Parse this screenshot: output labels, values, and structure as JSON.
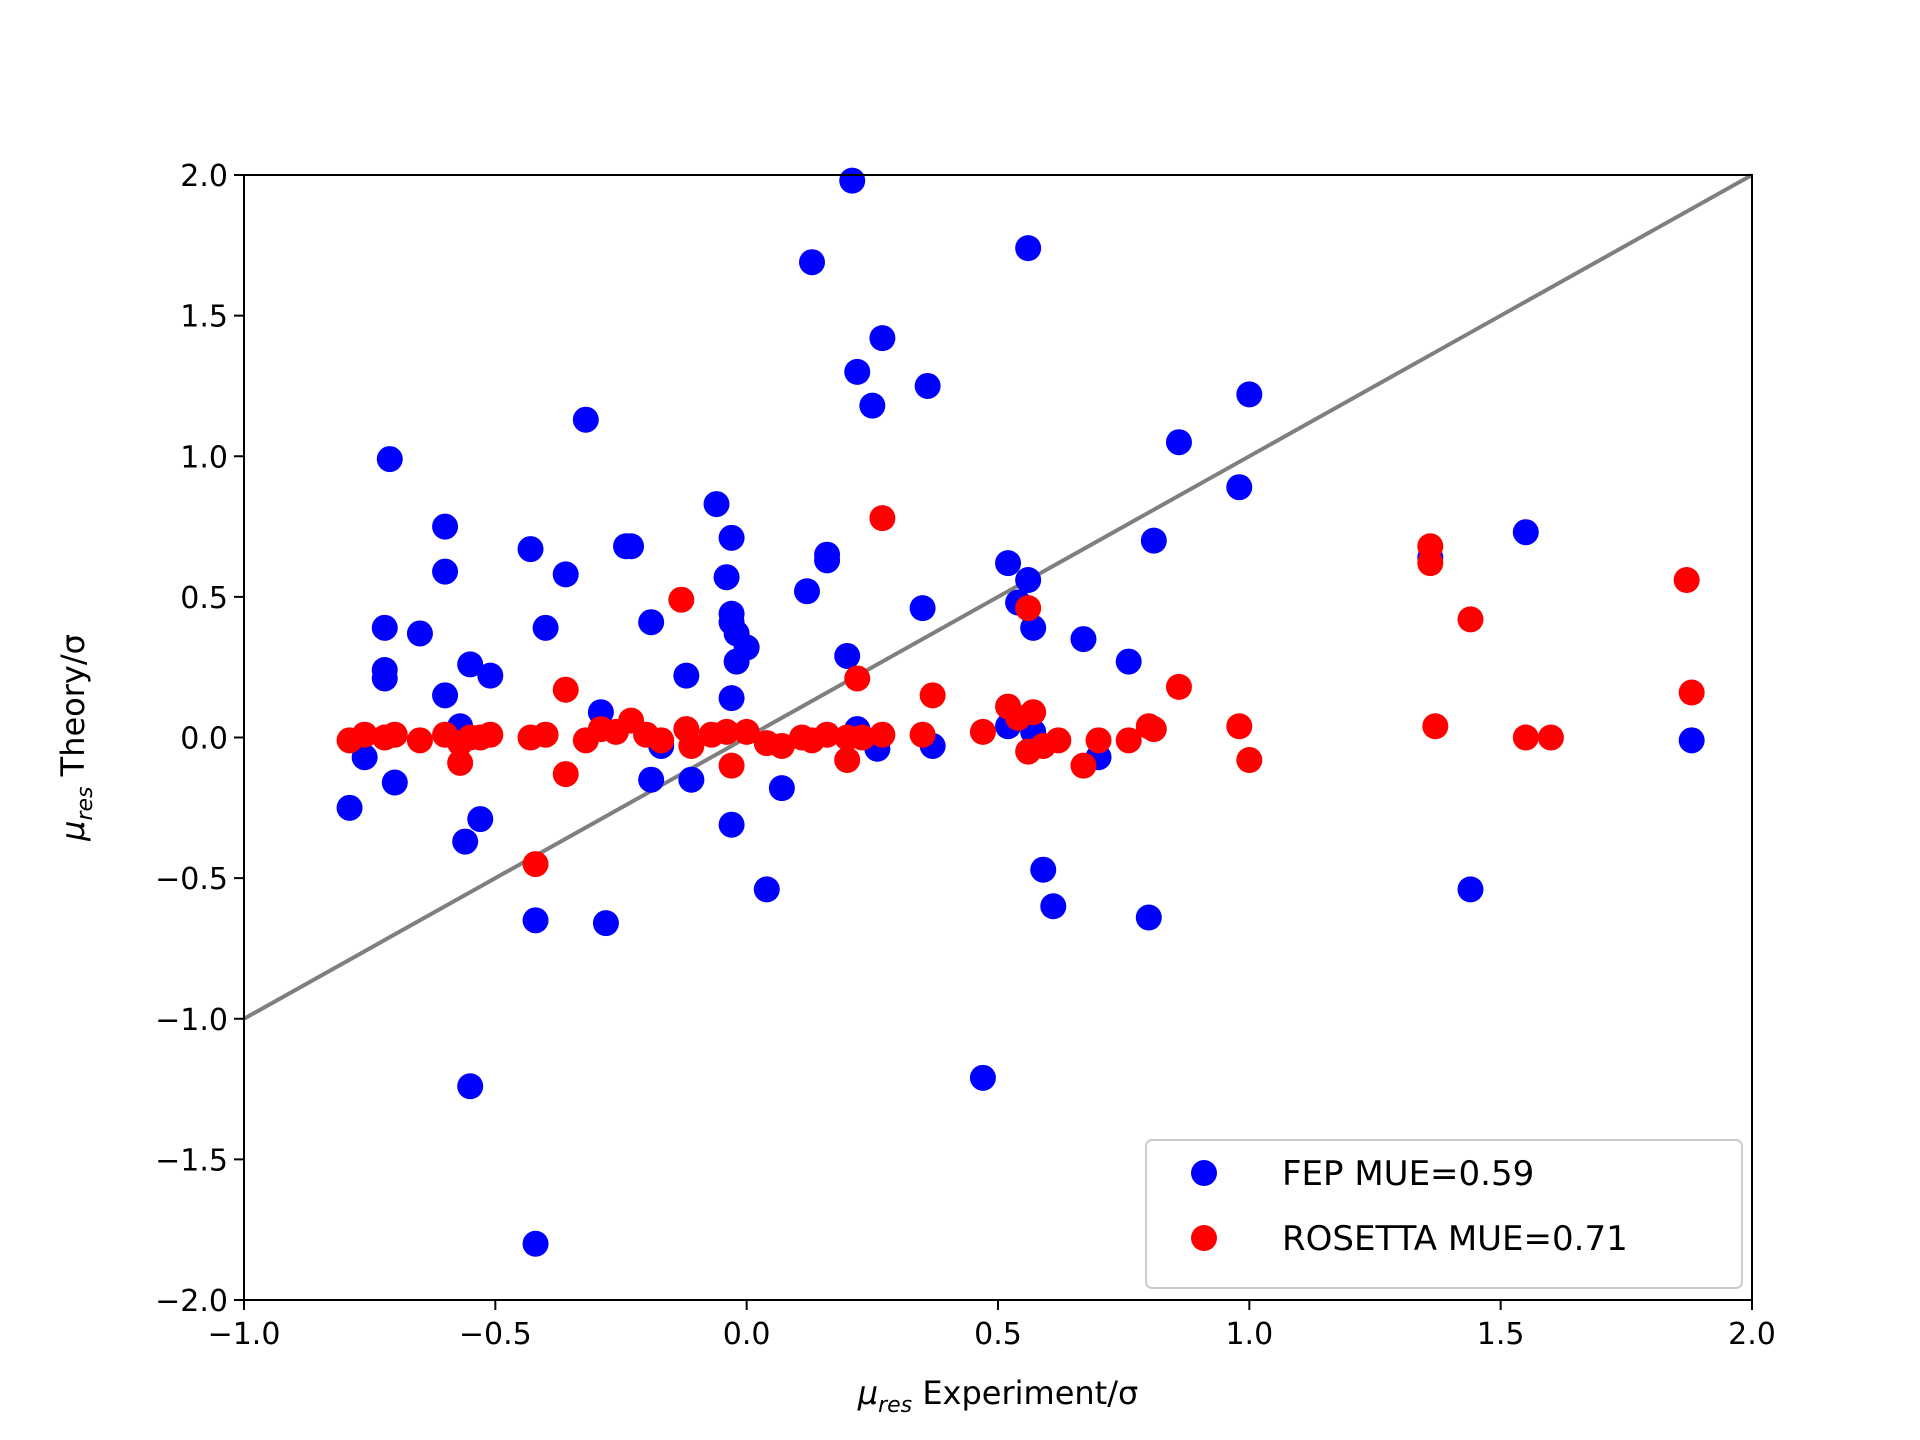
{
  "chart_data": {
    "type": "scatter",
    "title": "",
    "xlabel": {
      "symbol": "μ",
      "subscript": "res",
      "text": " Experiment/σ"
    },
    "ylabel": {
      "symbol": "μ",
      "subscript": "res",
      "text": " Theory/σ"
    },
    "xlim": [
      -1.0,
      2.0
    ],
    "ylim": [
      -2.0,
      2.0
    ],
    "xticks": [
      "−1.0",
      "−0.5",
      "0.0",
      "0.5",
      "1.0",
      "1.5",
      "2.0"
    ],
    "xtick_values": [
      -1.0,
      -0.5,
      0.0,
      0.5,
      1.0,
      1.5,
      2.0
    ],
    "yticks": [
      "−2.0",
      "−1.5",
      "−1.0",
      "−0.5",
      "0.0",
      "0.5",
      "1.0",
      "1.5",
      "2.0"
    ],
    "ytick_values": [
      -2.0,
      -1.5,
      -1.0,
      -0.5,
      0.0,
      0.5,
      1.0,
      1.5,
      2.0
    ],
    "grid": false,
    "legend_position": "lower-right",
    "reference_line": {
      "from": [
        -1.0,
        -1.0
      ],
      "to": [
        2.0,
        2.0
      ],
      "color": "#7f7f7f"
    },
    "series": [
      {
        "name": "FEP MUE=0.59",
        "color": "#0000ff",
        "points": [
          [
            0.21,
            1.98
          ],
          [
            0.13,
            1.69
          ],
          [
            0.56,
            1.74
          ],
          [
            0.27,
            1.42
          ],
          [
            0.22,
            1.3
          ],
          [
            0.25,
            1.18
          ],
          [
            0.36,
            1.25
          ],
          [
            -0.32,
            1.13
          ],
          [
            -0.71,
            0.99
          ],
          [
            1.0,
            1.22
          ],
          [
            0.86,
            1.05
          ],
          [
            0.98,
            0.89
          ],
          [
            -0.06,
            0.83
          ],
          [
            -0.6,
            0.75
          ],
          [
            -0.03,
            0.71
          ],
          [
            -0.43,
            0.67
          ],
          [
            -0.24,
            0.68
          ],
          [
            -0.23,
            0.68
          ],
          [
            0.16,
            0.65
          ],
          [
            0.16,
            0.63
          ],
          [
            0.81,
            0.7
          ],
          [
            1.55,
            0.73
          ],
          [
            1.36,
            0.64
          ],
          [
            0.52,
            0.62
          ],
          [
            -0.6,
            0.59
          ],
          [
            -0.36,
            0.58
          ],
          [
            -0.04,
            0.57
          ],
          [
            0.56,
            0.56
          ],
          [
            0.54,
            0.48
          ],
          [
            0.12,
            0.52
          ],
          [
            0.35,
            0.46
          ],
          [
            -0.72,
            0.39
          ],
          [
            -0.4,
            0.39
          ],
          [
            -0.03,
            0.44
          ],
          [
            -0.03,
            0.41
          ],
          [
            -0.02,
            0.37
          ],
          [
            -0.19,
            0.41
          ],
          [
            0.57,
            0.39
          ],
          [
            -0.65,
            0.37
          ],
          [
            0.67,
            0.35
          ],
          [
            0.0,
            0.32
          ],
          [
            -0.02,
            0.27
          ],
          [
            0.2,
            0.29
          ],
          [
            0.76,
            0.27
          ],
          [
            -0.55,
            0.26
          ],
          [
            -0.72,
            0.24
          ],
          [
            -0.72,
            0.21
          ],
          [
            -0.51,
            0.22
          ],
          [
            -0.12,
            0.22
          ],
          [
            -0.6,
            0.15
          ],
          [
            -0.03,
            0.14
          ],
          [
            -0.29,
            0.09
          ],
          [
            -0.57,
            0.04
          ],
          [
            0.52,
            0.04
          ],
          [
            0.57,
            0.02
          ],
          [
            0.22,
            0.03
          ],
          [
            -0.17,
            -0.03
          ],
          [
            0.26,
            -0.04
          ],
          [
            0.37,
            -0.03
          ],
          [
            0.7,
            -0.07
          ],
          [
            -0.76,
            -0.07
          ],
          [
            -0.7,
            -0.16
          ],
          [
            -0.19,
            -0.15
          ],
          [
            -0.11,
            -0.15
          ],
          [
            0.07,
            -0.18
          ],
          [
            -0.79,
            -0.25
          ],
          [
            -0.53,
            -0.29
          ],
          [
            -0.03,
            -0.31
          ],
          [
            -0.56,
            -0.37
          ],
          [
            0.59,
            -0.47
          ],
          [
            0.04,
            -0.54
          ],
          [
            1.44,
            -0.54
          ],
          [
            0.61,
            -0.6
          ],
          [
            -0.42,
            -0.65
          ],
          [
            0.8,
            -0.64
          ],
          [
            -0.28,
            -0.66
          ],
          [
            0.47,
            -1.21
          ],
          [
            -0.55,
            -1.24
          ],
          [
            -0.42,
            -1.8
          ],
          [
            1.88,
            -0.01
          ]
        ]
      },
      {
        "name": "ROSETTA MUE=0.71",
        "color": "#ff0000",
        "points": [
          [
            0.27,
            0.78
          ],
          [
            1.36,
            0.68
          ],
          [
            1.36,
            0.62
          ],
          [
            1.87,
            0.56
          ],
          [
            -0.13,
            0.49
          ],
          [
            1.44,
            0.42
          ],
          [
            0.56,
            0.46
          ],
          [
            0.22,
            0.21
          ],
          [
            -0.36,
            0.17
          ],
          [
            0.37,
            0.15
          ],
          [
            0.86,
            0.18
          ],
          [
            1.88,
            0.16
          ],
          [
            0.52,
            0.11
          ],
          [
            0.57,
            0.09
          ],
          [
            0.54,
            0.07
          ],
          [
            -0.23,
            0.06
          ],
          [
            0.8,
            0.04
          ],
          [
            0.98,
            0.04
          ],
          [
            1.37,
            0.04
          ],
          [
            -0.79,
            -0.01
          ],
          [
            -0.76,
            0.01
          ],
          [
            -0.72,
            0.0
          ],
          [
            -0.7,
            0.01
          ],
          [
            -0.65,
            -0.01
          ],
          [
            -0.6,
            0.01
          ],
          [
            -0.57,
            -0.02
          ],
          [
            -0.55,
            0.0
          ],
          [
            -0.53,
            0.0
          ],
          [
            -0.51,
            0.01
          ],
          [
            -0.43,
            0.0
          ],
          [
            -0.4,
            0.01
          ],
          [
            -0.32,
            -0.01
          ],
          [
            -0.29,
            0.03
          ],
          [
            -0.26,
            0.02
          ],
          [
            -0.2,
            0.01
          ],
          [
            -0.17,
            -0.01
          ],
          [
            -0.12,
            0.03
          ],
          [
            -0.11,
            -0.03
          ],
          [
            -0.07,
            0.01
          ],
          [
            -0.04,
            0.02
          ],
          [
            0.0,
            0.02
          ],
          [
            0.04,
            -0.02
          ],
          [
            0.07,
            -0.03
          ],
          [
            0.11,
            0.0
          ],
          [
            0.13,
            -0.01
          ],
          [
            0.16,
            0.01
          ],
          [
            0.2,
            0.0
          ],
          [
            0.23,
            0.0
          ],
          [
            0.27,
            0.01
          ],
          [
            0.35,
            0.01
          ],
          [
            0.47,
            0.02
          ],
          [
            0.62,
            -0.01
          ],
          [
            0.7,
            -0.01
          ],
          [
            0.76,
            -0.01
          ],
          [
            0.81,
            0.03
          ],
          [
            1.55,
            0.0
          ],
          [
            1.6,
            0.0
          ],
          [
            -0.57,
            -0.09
          ],
          [
            -0.36,
            -0.13
          ],
          [
            -0.03,
            -0.1
          ],
          [
            0.2,
            -0.08
          ],
          [
            0.56,
            -0.05
          ],
          [
            0.59,
            -0.03
          ],
          [
            0.67,
            -0.1
          ],
          [
            1.0,
            -0.08
          ],
          [
            -0.42,
            -0.45
          ]
        ]
      }
    ]
  }
}
